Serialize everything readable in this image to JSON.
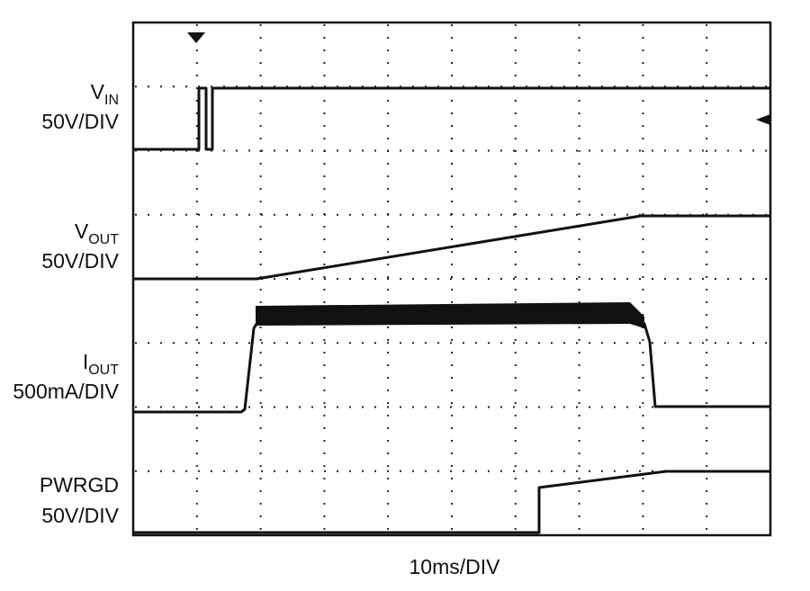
{
  "channels": [
    {
      "name": "V",
      "subscript": "IN",
      "scale": "50V/DIV"
    },
    {
      "name": "V",
      "subscript": "OUT",
      "scale": "50V/DIV"
    },
    {
      "name": "I",
      "subscript": "OUT",
      "scale": "500mA/DIV"
    },
    {
      "name": "PWRGD",
      "scale": "50V/DIV"
    }
  ],
  "timebase": "10ms/DIV"
}
